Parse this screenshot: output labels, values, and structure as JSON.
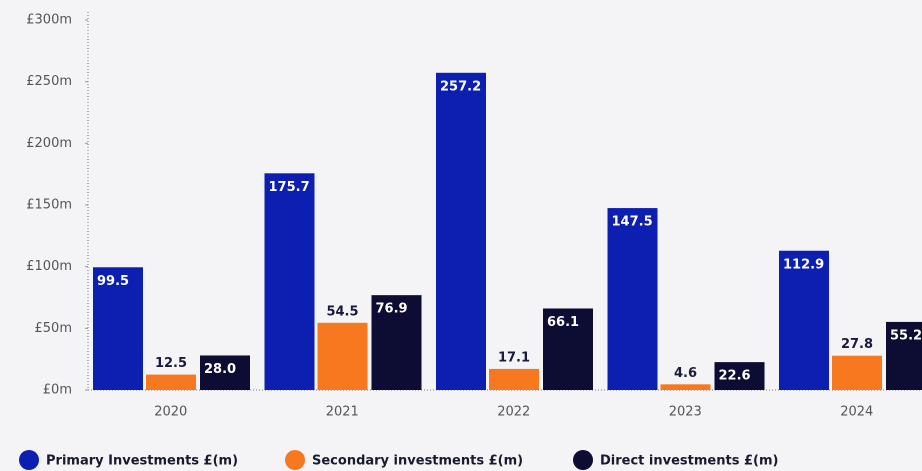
{
  "chart_data": {
    "type": "bar",
    "categories": [
      "2020",
      "2021",
      "2022",
      "2023",
      "2024"
    ],
    "series": [
      {
        "name": "Primary Investments £(m)",
        "color": "#0c1fb0",
        "values": [
          99.5,
          175.7,
          257.2,
          147.5,
          112.9
        ],
        "value_labels": [
          "99.5",
          "175.7",
          "257.2",
          "147.5",
          "112.9"
        ]
      },
      {
        "name": "Secondary investments £(m)",
        "color": "#f7781e",
        "values": [
          12.5,
          54.5,
          17.1,
          4.6,
          27.8
        ],
        "value_labels": [
          "12.5",
          "54.5",
          "17.1",
          "4.6",
          "27.8"
        ]
      },
      {
        "name": "Direct investments £(m)",
        "color": "#0d0c33",
        "values": [
          28,
          76.9,
          66.1,
          22.6,
          55.2
        ],
        "value_labels": [
          "28.0",
          "76.9",
          "66.1",
          "22.6",
          "55.2"
        ]
      }
    ],
    "ylim": [
      0,
      300
    ],
    "yticks": [
      {
        "value": 0,
        "label": "£0m"
      },
      {
        "value": 50,
        "label": "£50m"
      },
      {
        "value": 100,
        "label": "£100m"
      },
      {
        "value": 150,
        "label": "£150m"
      },
      {
        "value": 200,
        "label": "£200m"
      },
      {
        "value": 250,
        "label": "£250m"
      },
      {
        "value": 300,
        "label": "£300m"
      }
    ],
    "grid": false,
    "legend": "bottom"
  }
}
